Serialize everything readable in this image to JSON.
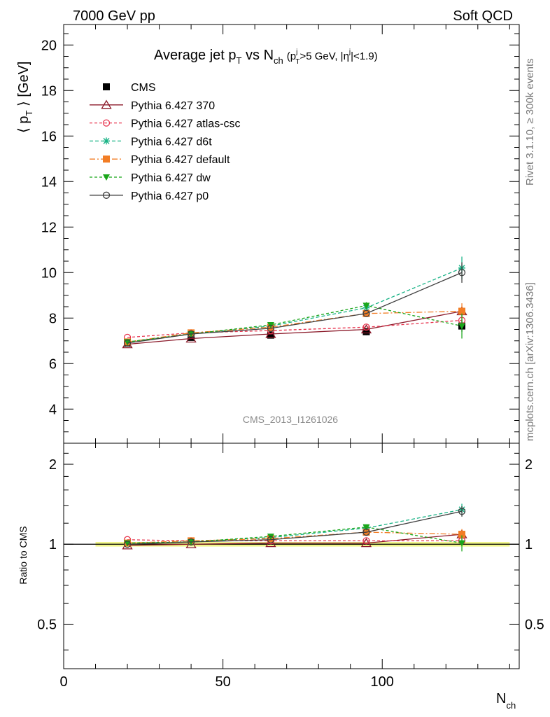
{
  "header": {
    "left": "7000 GeV pp",
    "right": "Soft QCD"
  },
  "side_labels": {
    "rivet": "Rivet 3.1.10, ≥ 300k events",
    "mcplots": "mcplots.cern.ch [arXiv:1306.3436]"
  },
  "analysis_id": "CMS_2013_I1261026",
  "colors": {
    "cms": "#000000",
    "p370": "#8b1a2a",
    "atlas": "#e8354f",
    "d6t": "#19b386",
    "default": "#f27d25",
    "dw": "#1aa61a",
    "p0": "#3f3f3f",
    "band": "#f0f58a"
  },
  "chart_data": [
    {
      "type": "line",
      "title_parts": {
        "main": "Average jet p",
        "main_sub": "T",
        "vs": " vs N",
        "vs_sub": "ch",
        "cut_a": "(p",
        "cut_a_sup": "j",
        "cut_a_sub": "T",
        "cut_b": ">5 GeV, |η",
        "cut_b_sup": "j",
        "cut_c": "|<1.9)"
      },
      "ylabel": "⟨ p",
      "ylabel_sub": "T",
      "ylabel_rest": " ⟩ [GeV]",
      "xlim": [
        0,
        143
      ],
      "ylim": [
        2.5,
        20.9
      ],
      "yticks": [
        4,
        6,
        8,
        10,
        12,
        14,
        16,
        18,
        20
      ],
      "x": [
        20,
        40,
        65,
        95,
        125
      ],
      "data": {
        "name": "CMS",
        "values": [
          6.9,
          7.15,
          7.25,
          7.4,
          7.65
        ],
        "errors": [
          0.1,
          0.1,
          0.12,
          0.15,
          0.25
        ]
      },
      "series": [
        {
          "name": "Pythia 6.427 370",
          "key": "p370",
          "marker": "triangle-open",
          "dash": "",
          "values": [
            6.85,
            7.1,
            7.3,
            7.5,
            8.3
          ],
          "errors": [
            0,
            0,
            0,
            0,
            0.2
          ]
        },
        {
          "name": "Pythia 6.427 atlas-csc",
          "key": "atlas",
          "marker": "circle-open",
          "dash": "4,3",
          "values": [
            7.15,
            7.35,
            7.45,
            7.6,
            7.9
          ],
          "errors": [
            0,
            0,
            0,
            0,
            0.15
          ]
        },
        {
          "name": "Pythia 6.427 d6t",
          "key": "d6t",
          "marker": "star",
          "dash": "5,3",
          "values": [
            6.95,
            7.3,
            7.65,
            8.45,
            10.2
          ],
          "errors": [
            0,
            0,
            0,
            0,
            0.5
          ]
        },
        {
          "name": "Pythia 6.427 default",
          "key": "default",
          "marker": "square",
          "dash": "8,3,2,3",
          "values": [
            6.95,
            7.35,
            7.6,
            8.2,
            8.3
          ],
          "errors": [
            0,
            0,
            0,
            0,
            0.35
          ]
        },
        {
          "name": "Pythia 6.427 dw",
          "key": "dw",
          "marker": "triangle-down",
          "dash": "4,3",
          "values": [
            6.95,
            7.3,
            7.7,
            8.55,
            7.65
          ],
          "errors": [
            0,
            0,
            0,
            0.15,
            0.55
          ]
        },
        {
          "name": "Pythia 6.427 p0",
          "key": "p0",
          "marker": "circle-open",
          "dash": "",
          "values": [
            6.9,
            7.3,
            7.55,
            8.2,
            10.0
          ],
          "errors": [
            0,
            0,
            0,
            0,
            0.45
          ]
        }
      ]
    },
    {
      "type": "line",
      "ylabel": "Ratio to CMS",
      "xlabel": "N",
      "xlabel_sub": "ch",
      "xlim": [
        0,
        143
      ],
      "ylim": [
        0.34,
        2.4
      ],
      "log_y": true,
      "xticks": [
        0,
        50,
        100
      ],
      "yticks": [
        0.5,
        1,
        2
      ],
      "yticklabels": [
        "0.5",
        "1",
        "2"
      ],
      "band": {
        "x": [
          10,
          140
        ],
        "lo": 0.98,
        "hi": 1.02
      },
      "x": [
        20,
        40,
        65,
        95,
        125
      ],
      "series": [
        {
          "name": "Pythia 6.427 370",
          "key": "p370",
          "marker": "triangle-open",
          "dash": "",
          "values": [
            0.99,
            1.0,
            1.01,
            1.01,
            1.09
          ],
          "errors": [
            0,
            0,
            0,
            0,
            0.03
          ]
        },
        {
          "name": "Pythia 6.427 atlas-csc",
          "key": "atlas",
          "marker": "circle-open",
          "dash": "4,3",
          "values": [
            1.04,
            1.03,
            1.03,
            1.03,
            1.03
          ],
          "errors": [
            0,
            0,
            0,
            0,
            0.02
          ]
        },
        {
          "name": "Pythia 6.427 d6t",
          "key": "d6t",
          "marker": "star",
          "dash": "5,3",
          "values": [
            1.01,
            1.02,
            1.06,
            1.15,
            1.35
          ],
          "errors": [
            0,
            0,
            0,
            0,
            0.07
          ]
        },
        {
          "name": "Pythia 6.427 default",
          "key": "default",
          "marker": "square",
          "dash": "8,3,2,3",
          "values": [
            1.01,
            1.03,
            1.05,
            1.11,
            1.09
          ],
          "errors": [
            0,
            0,
            0,
            0,
            0.05
          ]
        },
        {
          "name": "Pythia 6.427 dw",
          "key": "dw",
          "marker": "triangle-down",
          "dash": "4,3",
          "values": [
            1.01,
            1.02,
            1.07,
            1.16,
            1.01
          ],
          "errors": [
            0,
            0,
            0,
            0.02,
            0.07
          ]
        },
        {
          "name": "Pythia 6.427 p0",
          "key": "p0",
          "marker": "circle-open",
          "dash": "",
          "values": [
            1.0,
            1.02,
            1.04,
            1.11,
            1.33
          ],
          "errors": [
            0,
            0,
            0,
            0,
            0.06
          ]
        }
      ]
    }
  ]
}
